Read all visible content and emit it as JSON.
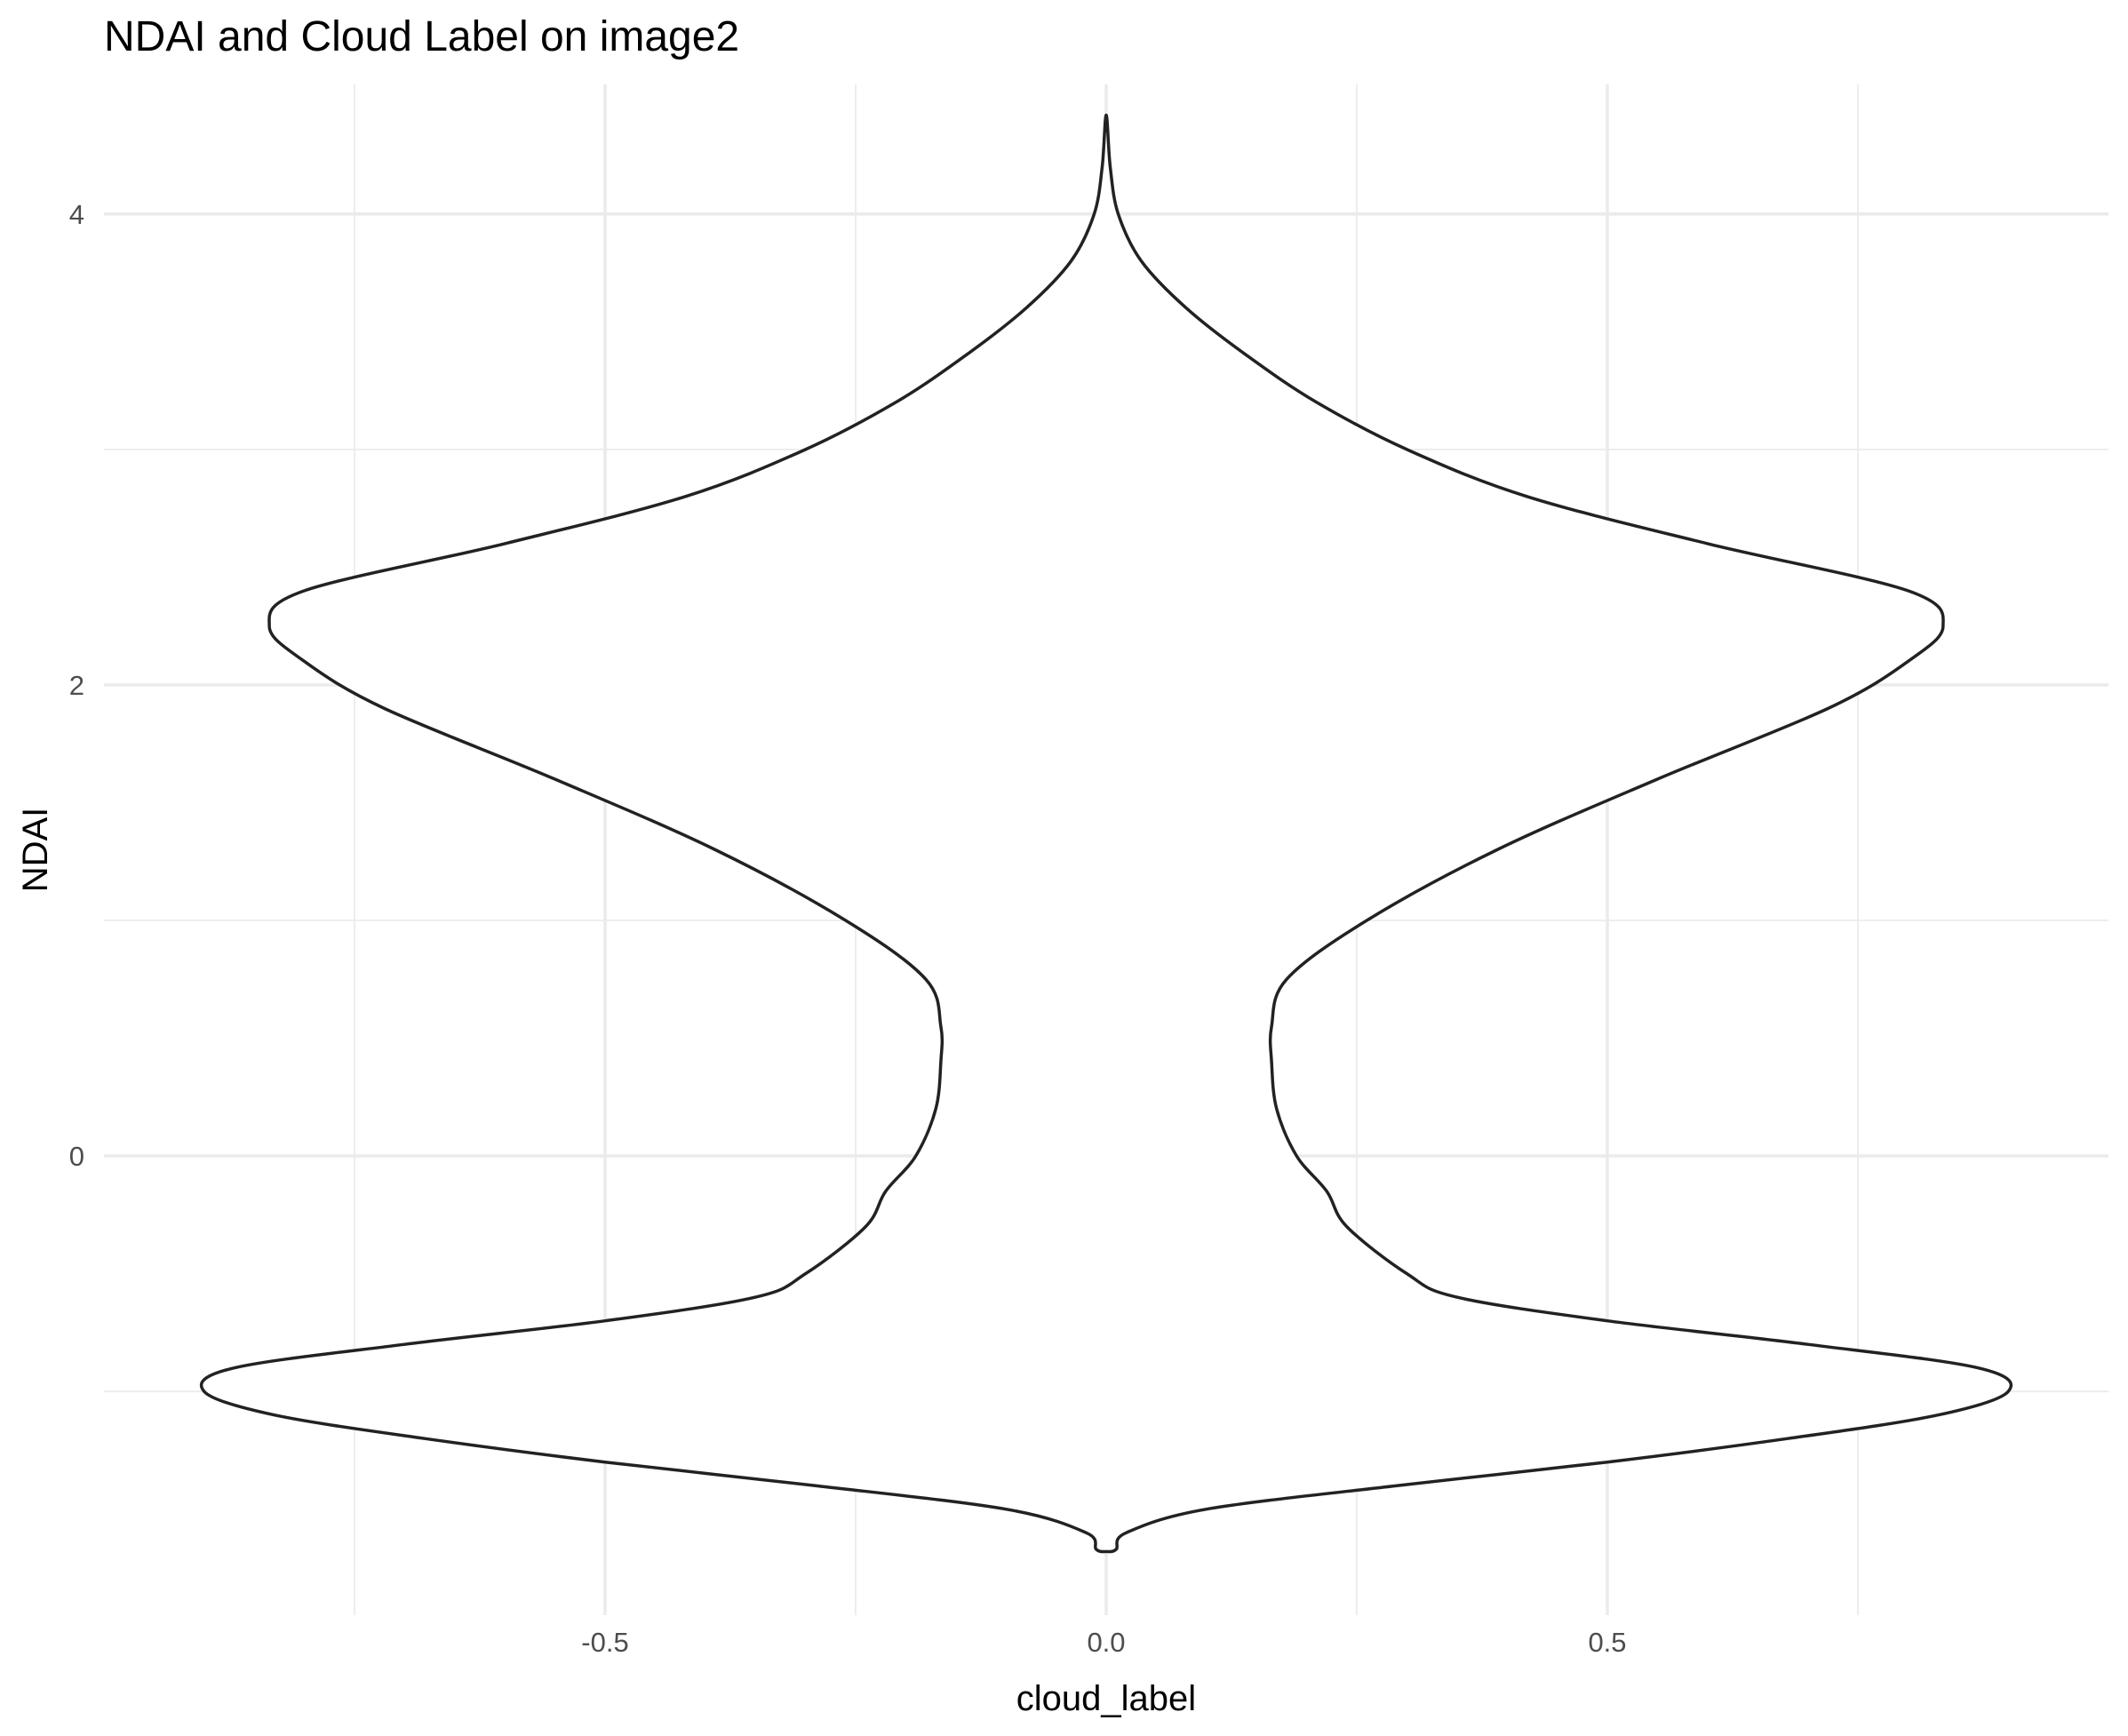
{
  "chart_data": {
    "type": "violin",
    "title": "NDAI and Cloud Label on image2",
    "xlabel": "cloud_label",
    "ylabel": "NDAI",
    "xlim": [
      -1.0,
      1.0
    ],
    "ylim": [
      -1.95,
      4.55
    ],
    "x_ticks": [
      -0.5,
      0.0,
      0.5
    ],
    "x_tick_labels": [
      "-0.5",
      "0.0",
      "0.5"
    ],
    "y_ticks": [
      0,
      2,
      4
    ],
    "y_tick_labels": [
      "0",
      "2",
      "4"
    ],
    "grid": true,
    "violin_center": 0.0,
    "stroke_color": "#222222",
    "fill_color": "#ffffff",
    "density_profile": [
      {
        "y": -1.68,
        "half_width": 0.0
      },
      {
        "y": -1.67,
        "half_width": 0.01
      },
      {
        "y": -1.6,
        "half_width": 0.02
      },
      {
        "y": -1.5,
        "half_width": 0.1
      },
      {
        "y": -1.4,
        "half_width": 0.29
      },
      {
        "y": -1.3,
        "half_width": 0.5
      },
      {
        "y": -1.2,
        "half_width": 0.68
      },
      {
        "y": -1.1,
        "half_width": 0.83
      },
      {
        "y": -1.0,
        "half_width": 0.9
      },
      {
        "y": -0.9,
        "half_width": 0.87
      },
      {
        "y": -0.8,
        "half_width": 0.7
      },
      {
        "y": -0.7,
        "half_width": 0.5
      },
      {
        "y": -0.6,
        "half_width": 0.35
      },
      {
        "y": -0.5,
        "half_width": 0.3
      },
      {
        "y": -0.3,
        "half_width": 0.24
      },
      {
        "y": -0.15,
        "half_width": 0.22
      },
      {
        "y": 0.0,
        "half_width": 0.19
      },
      {
        "y": 0.2,
        "half_width": 0.17
      },
      {
        "y": 0.4,
        "half_width": 0.165
      },
      {
        "y": 0.55,
        "half_width": 0.165
      },
      {
        "y": 0.75,
        "half_width": 0.18
      },
      {
        "y": 1.0,
        "half_width": 0.26
      },
      {
        "y": 1.3,
        "half_width": 0.39
      },
      {
        "y": 1.6,
        "half_width": 0.55
      },
      {
        "y": 1.9,
        "half_width": 0.72
      },
      {
        "y": 2.1,
        "half_width": 0.8
      },
      {
        "y": 2.25,
        "half_width": 0.835
      },
      {
        "y": 2.4,
        "half_width": 0.8
      },
      {
        "y": 2.6,
        "half_width": 0.6
      },
      {
        "y": 2.8,
        "half_width": 0.42
      },
      {
        "y": 3.0,
        "half_width": 0.3
      },
      {
        "y": 3.2,
        "half_width": 0.21
      },
      {
        "y": 3.4,
        "half_width": 0.14
      },
      {
        "y": 3.6,
        "half_width": 0.08
      },
      {
        "y": 3.8,
        "half_width": 0.035
      },
      {
        "y": 4.0,
        "half_width": 0.012
      },
      {
        "y": 4.2,
        "half_width": 0.004
      },
      {
        "y": 4.42,
        "half_width": 0.0
      }
    ]
  }
}
